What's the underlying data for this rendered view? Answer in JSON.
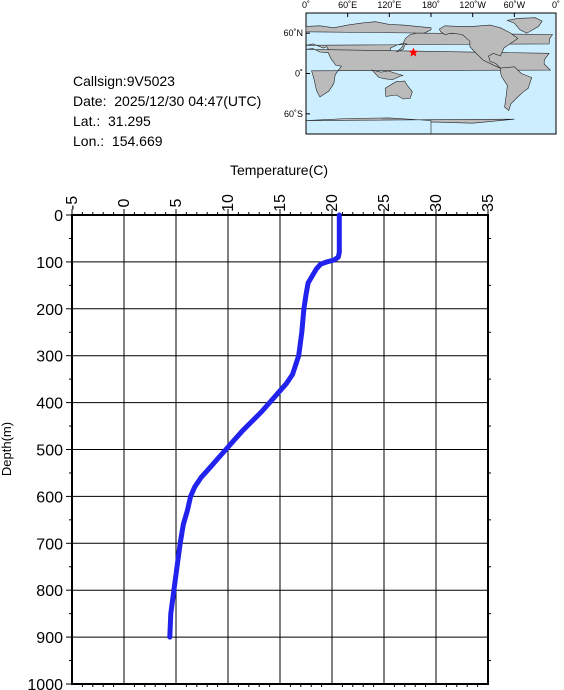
{
  "info": {
    "callsign": "Callsign:9V5023",
    "date": "Date:  2025/12/30 04:47(UTC)",
    "lat": "Lat.:  31.295",
    "lon": "Lon.:  154.669"
  },
  "map": {
    "top_labels": [
      "0˚",
      "60˚E",
      "120˚E",
      "180˚",
      "120˚W",
      "60˚W",
      "0˚"
    ],
    "side_labels": [
      "60˚N",
      "0˚",
      "60˚S"
    ],
    "marker": {
      "lat": 31.295,
      "lon": 154.669
    },
    "colors": {
      "ocean": "#cceeff",
      "land": "#bbbbbb",
      "marker": "#ff0000"
    }
  },
  "chart_data": {
    "type": "line",
    "xlabel": "Temperature(C)",
    "ylabel": "Depth(m)",
    "xlim": [
      -5,
      35
    ],
    "ylim": [
      0,
      1000
    ],
    "x_ticks": [
      "-5",
      "0",
      "5",
      "10",
      "15",
      "20",
      "25",
      "30",
      "35"
    ],
    "y_ticks": [
      "0",
      "100",
      "200",
      "300",
      "400",
      "500",
      "600",
      "700",
      "800",
      "900",
      "1000"
    ],
    "grid": true,
    "line_color": "#2222ee",
    "series": [
      {
        "points": [
          [
            20.7,
            0
          ],
          [
            20.7,
            20
          ],
          [
            20.7,
            50
          ],
          [
            20.7,
            80
          ],
          [
            20.6,
            90
          ],
          [
            20.2,
            96
          ],
          [
            19.5,
            100
          ],
          [
            18.9,
            105
          ],
          [
            18.5,
            115
          ],
          [
            18.1,
            130
          ],
          [
            17.7,
            145
          ],
          [
            17.5,
            170
          ],
          [
            17.3,
            200
          ],
          [
            17.1,
            250
          ],
          [
            16.8,
            300
          ],
          [
            16.2,
            340
          ],
          [
            15.6,
            360
          ],
          [
            14.8,
            380
          ],
          [
            14.0,
            400
          ],
          [
            13.2,
            420
          ],
          [
            12.3,
            440
          ],
          [
            11.4,
            460
          ],
          [
            10.6,
            480
          ],
          [
            9.8,
            500
          ],
          [
            9.0,
            520
          ],
          [
            8.2,
            540
          ],
          [
            7.4,
            560
          ],
          [
            6.8,
            580
          ],
          [
            6.4,
            600
          ],
          [
            6.1,
            630
          ],
          [
            5.7,
            660
          ],
          [
            5.4,
            700
          ],
          [
            5.1,
            750
          ],
          [
            4.8,
            800
          ],
          [
            4.5,
            850
          ],
          [
            4.4,
            900
          ]
        ]
      }
    ]
  }
}
